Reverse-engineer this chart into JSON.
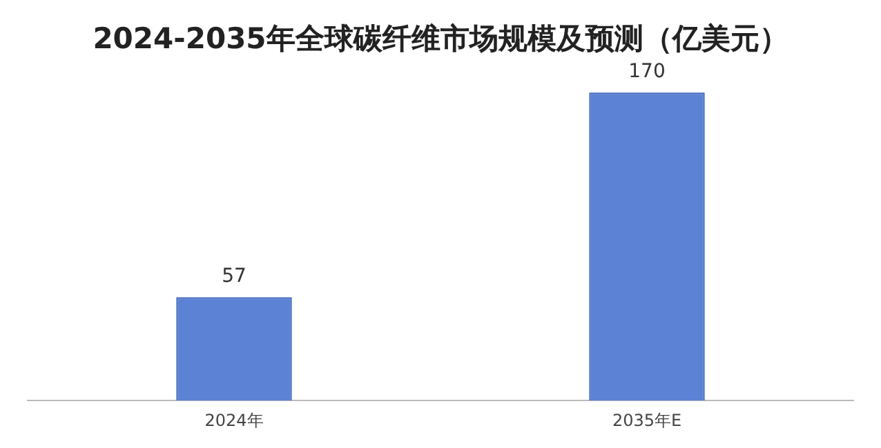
{
  "chart_data": {
    "type": "bar",
    "title": "2024-2035年全球碳纤维市场规模及预测（亿美元）",
    "categories": [
      "2024年",
      "2035年E"
    ],
    "values": [
      57,
      170
    ],
    "color": "#5b82d4",
    "data_labels": true,
    "grid": false,
    "legend": false
  }
}
